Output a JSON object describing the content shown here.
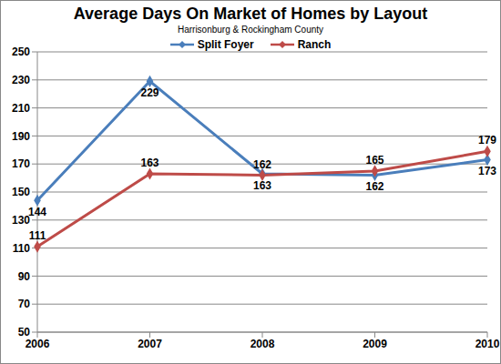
{
  "chart_data": {
    "type": "line",
    "title": "Average Days On Market of Homes by Layout",
    "subtitle": "Harrisonburg & Rockingham County",
    "categories": [
      "2006",
      "2007",
      "2008",
      "2009",
      "2010"
    ],
    "series": [
      {
        "name": "Split Foyer",
        "color": "#4a7ebb",
        "values": [
          144,
          229,
          163,
          162,
          173
        ],
        "marker": "diamond"
      },
      {
        "name": "Ranch",
        "color": "#be4b48",
        "values": [
          111,
          163,
          162,
          165,
          179
        ],
        "marker": "diamond"
      }
    ],
    "ylim": [
      50,
      250
    ],
    "yticks": [
      50,
      70,
      90,
      110,
      130,
      150,
      170,
      190,
      210,
      230,
      250
    ],
    "grid": true,
    "legend": "top",
    "data_labels": true
  }
}
